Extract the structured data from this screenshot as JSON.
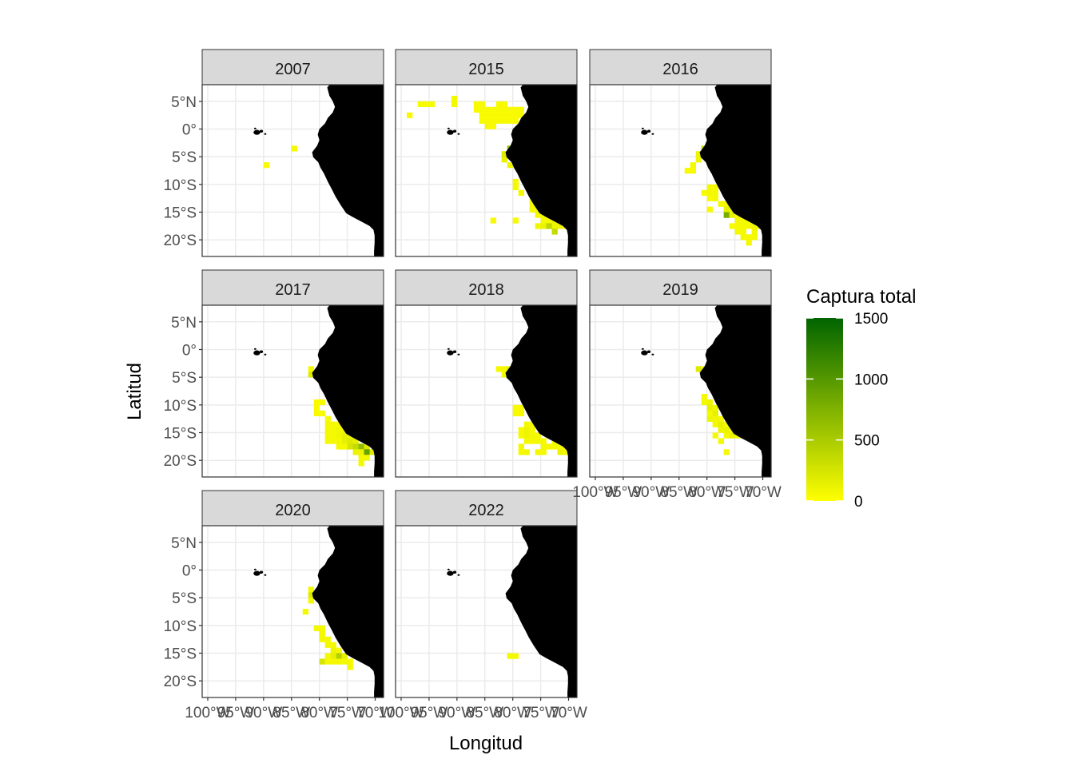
{
  "chart_data": {
    "type": "heatmap",
    "xlabel": "Longitud",
    "ylabel": "Latitud",
    "x_ticks": [
      {
        "value": -100,
        "label": "100°W"
      },
      {
        "value": -95,
        "label": "95°W"
      },
      {
        "value": -90,
        "label": "90°W"
      },
      {
        "value": -85,
        "label": "85°W"
      },
      {
        "value": -80,
        "label": "80°W"
      },
      {
        "value": -75,
        "label": "75°W"
      },
      {
        "value": -70,
        "label": "70°W"
      }
    ],
    "y_ticks": [
      {
        "value": 5,
        "label": "5°N"
      },
      {
        "value": 0,
        "label": "0°"
      },
      {
        "value": -5,
        "label": "5°S"
      },
      {
        "value": -10,
        "label": "10°S"
      },
      {
        "value": -15,
        "label": "15°S"
      },
      {
        "value": -20,
        "label": "20°S"
      }
    ],
    "xlim": [
      -101,
      -68.5
    ],
    "ylim": [
      -23,
      8
    ],
    "cell_size_deg": 1,
    "grid": true,
    "legend": {
      "title": "Captura total",
      "position": "right",
      "limits": [
        0,
        1500
      ],
      "breaks": [
        0,
        500,
        1000,
        1500
      ],
      "color_low": "#ffff00",
      "color_high": "#006400"
    },
    "land_color": "#000000",
    "panels": [
      {
        "year": "2007",
        "cells": [
          [
            -84.5,
            -3.5,
            60
          ],
          [
            -89.5,
            -6.5,
            40
          ]
        ]
      },
      {
        "year": "2015",
        "cells": [
          [
            -98.5,
            2.5,
            50
          ],
          [
            -96.5,
            4.5,
            40
          ],
          [
            -95.5,
            4.5,
            40
          ],
          [
            -94.5,
            4.5,
            40
          ],
          [
            -90.5,
            5.5,
            60
          ],
          [
            -90.5,
            4.5,
            60
          ],
          [
            -86.5,
            4.5,
            40
          ],
          [
            -85.5,
            4.5,
            40
          ],
          [
            -82.5,
            4.5,
            40
          ],
          [
            -81.5,
            4.5,
            40
          ],
          [
            -86.5,
            3.5,
            40
          ],
          [
            -85.5,
            3.5,
            40
          ],
          [
            -84.5,
            3.5,
            40
          ],
          [
            -83.5,
            3.5,
            40
          ],
          [
            -82.5,
            3.5,
            40
          ],
          [
            -81.5,
            3.5,
            40
          ],
          [
            -80.5,
            3.5,
            40
          ],
          [
            -79.5,
            3.5,
            40
          ],
          [
            -78.5,
            3.5,
            40
          ],
          [
            -85.5,
            2.5,
            40
          ],
          [
            -84.5,
            2.5,
            40
          ],
          [
            -83.5,
            2.5,
            40
          ],
          [
            -82.5,
            2.5,
            40
          ],
          [
            -81.5,
            2.5,
            40
          ],
          [
            -80.5,
            2.5,
            40
          ],
          [
            -79.5,
            2.5,
            40
          ],
          [
            -78.5,
            2.5,
            40
          ],
          [
            -85.5,
            1.5,
            40
          ],
          [
            -84.5,
            1.5,
            40
          ],
          [
            -83.5,
            1.5,
            40
          ],
          [
            -82.5,
            1.5,
            40
          ],
          [
            -81.5,
            1.5,
            40
          ],
          [
            -80.5,
            1.5,
            40
          ],
          [
            -79.5,
            1.5,
            40
          ],
          [
            -84.5,
            0.5,
            40
          ],
          [
            -83.5,
            0.5,
            40
          ],
          [
            -80.5,
            -3.5,
            650
          ],
          [
            -80.5,
            -4.5,
            300
          ],
          [
            -81.5,
            -4.5,
            200
          ],
          [
            -81.5,
            -5.5,
            150
          ],
          [
            -80.5,
            -6.5,
            100
          ],
          [
            -79.5,
            -9.5,
            60
          ],
          [
            -79.5,
            -10.5,
            60
          ],
          [
            -78.5,
            -11.5,
            60
          ],
          [
            -76.5,
            -12.5,
            60
          ],
          [
            -76.5,
            -13.5,
            60
          ],
          [
            -76.5,
            -14.5,
            60
          ],
          [
            -75.5,
            -14.5,
            60
          ],
          [
            -75.5,
            -15.5,
            60
          ],
          [
            -74.5,
            -15.5,
            60
          ],
          [
            -73.5,
            -15.5,
            60
          ],
          [
            -72.5,
            -15.5,
            60
          ],
          [
            -83.5,
            -16.5,
            40
          ],
          [
            -79.5,
            -16.5,
            40
          ],
          [
            -74.5,
            -16.5,
            60
          ],
          [
            -73.5,
            -16.5,
            60
          ],
          [
            -72.5,
            -16.5,
            100
          ],
          [
            -71.5,
            -16.5,
            60
          ],
          [
            -75.5,
            -17.5,
            80
          ],
          [
            -74.5,
            -17.5,
            120
          ],
          [
            -73.5,
            -17.5,
            400
          ],
          [
            -72.5,
            -17.5,
            100
          ],
          [
            -71.5,
            -17.5,
            100
          ],
          [
            -70.5,
            -17.5,
            60
          ],
          [
            -72.5,
            -18.5,
            350
          ]
        ]
      },
      {
        "year": "2016",
        "cells": [
          [
            -80.5,
            -3.5,
            350
          ],
          [
            -81.5,
            -4.5,
            100
          ],
          [
            -80.5,
            -4.5,
            500
          ],
          [
            -81.5,
            -5.5,
            100
          ],
          [
            -82.5,
            -6.5,
            60
          ],
          [
            -83.5,
            -7.5,
            40
          ],
          [
            -82.5,
            -7.5,
            40
          ],
          [
            -79.5,
            -10.5,
            60
          ],
          [
            -78.5,
            -10.5,
            60
          ],
          [
            -80.5,
            -11.5,
            40
          ],
          [
            -79.5,
            -11.5,
            60
          ],
          [
            -78.5,
            -11.5,
            60
          ],
          [
            -79.5,
            -12.5,
            40
          ],
          [
            -78.5,
            -12.5,
            60
          ],
          [
            -77.5,
            -13.5,
            60
          ],
          [
            -76.5,
            -13.5,
            60
          ],
          [
            -79.5,
            -14.5,
            40
          ],
          [
            -76.5,
            -14.5,
            150
          ],
          [
            -75.5,
            -14.5,
            100
          ],
          [
            -76.5,
            -15.5,
            800
          ],
          [
            -75.5,
            -15.5,
            150
          ],
          [
            -74.5,
            -15.5,
            60
          ],
          [
            -74.5,
            -16.5,
            60
          ],
          [
            -73.5,
            -16.5,
            60
          ],
          [
            -72.5,
            -16.5,
            60
          ],
          [
            -75.5,
            -17.5,
            40
          ],
          [
            -74.5,
            -17.5,
            60
          ],
          [
            -73.5,
            -17.5,
            60
          ],
          [
            -72.5,
            -17.5,
            60
          ],
          [
            -71.5,
            -17.5,
            80
          ],
          [
            -70.5,
            -17.5,
            60
          ],
          [
            -74.5,
            -18.5,
            60
          ],
          [
            -73.5,
            -18.5,
            60
          ],
          [
            -71.5,
            -18.5,
            60
          ],
          [
            -73.5,
            -19.5,
            60
          ],
          [
            -72.5,
            -19.5,
            60
          ],
          [
            -71.5,
            -19.5,
            60
          ],
          [
            -72.5,
            -20.5,
            60
          ]
        ]
      },
      {
        "year": "2017",
        "cells": [
          [
            -81.5,
            -3.5,
            60
          ],
          [
            -81.5,
            -4.5,
            200
          ],
          [
            -80.5,
            -9.5,
            40
          ],
          [
            -79.5,
            -9.5,
            40
          ],
          [
            -80.5,
            -10.5,
            40
          ],
          [
            -80.5,
            -11.5,
            40
          ],
          [
            -79.5,
            -11.5,
            40
          ],
          [
            -78.5,
            -12.5,
            40
          ],
          [
            -78.5,
            -13.5,
            60
          ],
          [
            -77.5,
            -13.5,
            60
          ],
          [
            -76.5,
            -13.5,
            60
          ],
          [
            -78.5,
            -14.5,
            60
          ],
          [
            -77.5,
            -14.5,
            60
          ],
          [
            -76.5,
            -14.5,
            80
          ],
          [
            -75.5,
            -14.5,
            60
          ],
          [
            -78.5,
            -15.5,
            60
          ],
          [
            -77.5,
            -15.5,
            60
          ],
          [
            -76.5,
            -15.5,
            80
          ],
          [
            -75.5,
            -15.5,
            150
          ],
          [
            -74.5,
            -15.5,
            120
          ],
          [
            -78.5,
            -16.5,
            60
          ],
          [
            -77.5,
            -16.5,
            60
          ],
          [
            -76.5,
            -16.5,
            60
          ],
          [
            -75.5,
            -16.5,
            150
          ],
          [
            -74.5,
            -16.5,
            200
          ],
          [
            -73.5,
            -16.5,
            150
          ],
          [
            -76.5,
            -17.5,
            60
          ],
          [
            -75.5,
            -17.5,
            60
          ],
          [
            -74.5,
            -17.5,
            250
          ],
          [
            -73.5,
            -17.5,
            350
          ],
          [
            -72.5,
            -17.5,
            650
          ],
          [
            -71.5,
            -17.5,
            200
          ],
          [
            -73.5,
            -18.5,
            120
          ],
          [
            -72.5,
            -18.5,
            100
          ],
          [
            -71.5,
            -18.5,
            900
          ],
          [
            -70.5,
            -18.5,
            200
          ],
          [
            -72.5,
            -19.5,
            60
          ],
          [
            -71.5,
            -19.5,
            60
          ],
          [
            -72.5,
            -20.5,
            60
          ]
        ]
      },
      {
        "year": "2018",
        "cells": [
          [
            -82.5,
            -3.5,
            60
          ],
          [
            -81.5,
            -3.5,
            60
          ],
          [
            -80.5,
            -3.5,
            150
          ],
          [
            -81.5,
            -4.5,
            60
          ],
          [
            -79.5,
            -10.5,
            40
          ],
          [
            -78.5,
            -10.5,
            40
          ],
          [
            -79.5,
            -11.5,
            40
          ],
          [
            -78.5,
            -11.5,
            40
          ],
          [
            -77.5,
            -13.5,
            60
          ],
          [
            -76.5,
            -13.5,
            60
          ],
          [
            -78.5,
            -14.5,
            60
          ],
          [
            -77.5,
            -14.5,
            100
          ],
          [
            -76.5,
            -14.5,
            60
          ],
          [
            -78.5,
            -15.5,
            60
          ],
          [
            -77.5,
            -15.5,
            100
          ],
          [
            -76.5,
            -15.5,
            60
          ],
          [
            -75.5,
            -15.5,
            60
          ],
          [
            -77.5,
            -16.5,
            60
          ],
          [
            -76.5,
            -16.5,
            60
          ],
          [
            -75.5,
            -16.5,
            60
          ],
          [
            -74.5,
            -16.5,
            60
          ],
          [
            -72.5,
            -16.5,
            60
          ],
          [
            -71.5,
            -16.5,
            60
          ],
          [
            -78.5,
            -17.5,
            60
          ],
          [
            -74.5,
            -17.5,
            60
          ],
          [
            -73.5,
            -17.5,
            60
          ],
          [
            -72.5,
            -17.5,
            60
          ],
          [
            -71.5,
            -17.5,
            60
          ],
          [
            -70.5,
            -17.5,
            60
          ],
          [
            -78.5,
            -18.5,
            60
          ],
          [
            -77.5,
            -18.5,
            60
          ],
          [
            -75.5,
            -18.5,
            60
          ],
          [
            -74.5,
            -18.5,
            60
          ],
          [
            -71.5,
            -18.5,
            100
          ],
          [
            -70.5,
            -18.5,
            60
          ]
        ]
      },
      {
        "year": "2019",
        "cells": [
          [
            -81.5,
            -3.5,
            200
          ],
          [
            -80.5,
            -3.5,
            60
          ],
          [
            -80.5,
            -8.5,
            60
          ],
          [
            -79.5,
            -9.5,
            100
          ],
          [
            -80.5,
            -9.5,
            60
          ],
          [
            -79.5,
            -10.5,
            150
          ],
          [
            -78.5,
            -10.5,
            80
          ],
          [
            -79.5,
            -11.5,
            60
          ],
          [
            -78.5,
            -11.5,
            150
          ],
          [
            -79.5,
            -12.5,
            100
          ],
          [
            -78.5,
            -12.5,
            80
          ],
          [
            -77.5,
            -12.5,
            60
          ],
          [
            -78.5,
            -13.5,
            60
          ],
          [
            -77.5,
            -13.5,
            150
          ],
          [
            -76.5,
            -13.5,
            60
          ],
          [
            -77.5,
            -14.5,
            100
          ],
          [
            -76.5,
            -14.5,
            120
          ],
          [
            -75.5,
            -14.5,
            60
          ],
          [
            -78.5,
            -15.5,
            60
          ],
          [
            -76.5,
            -15.5,
            60
          ],
          [
            -75.5,
            -15.5,
            120
          ],
          [
            -74.5,
            -15.5,
            60
          ],
          [
            -73.5,
            -15.5,
            60
          ],
          [
            -77.5,
            -16.5,
            60
          ],
          [
            -76.5,
            -18.5,
            60
          ]
        ]
      },
      {
        "year": "2020",
        "cells": [
          [
            -81.5,
            -3.5,
            60
          ],
          [
            -81.5,
            -4.5,
            200
          ],
          [
            -81.5,
            -5.5,
            60
          ],
          [
            -82.5,
            -7.5,
            60
          ],
          [
            -80.5,
            -10.5,
            60
          ],
          [
            -79.5,
            -10.5,
            60
          ],
          [
            -79.5,
            -11.5,
            60
          ],
          [
            -79.5,
            -12.5,
            60
          ],
          [
            -78.5,
            -12.5,
            60
          ],
          [
            -78.5,
            -13.5,
            60
          ],
          [
            -77.5,
            -13.5,
            60
          ],
          [
            -77.5,
            -14.5,
            100
          ],
          [
            -76.5,
            -14.5,
            60
          ],
          [
            -78.5,
            -15.5,
            60
          ],
          [
            -77.5,
            -15.5,
            150
          ],
          [
            -76.5,
            -15.5,
            450
          ],
          [
            -75.5,
            -15.5,
            150
          ],
          [
            -79.5,
            -16.5,
            250
          ],
          [
            -78.5,
            -16.5,
            60
          ],
          [
            -77.5,
            -16.5,
            60
          ],
          [
            -76.5,
            -16.5,
            60
          ],
          [
            -75.5,
            -16.5,
            60
          ],
          [
            -74.5,
            -16.5,
            60
          ],
          [
            -74.5,
            -17.5,
            60
          ]
        ]
      },
      {
        "year": "2022",
        "cells": [
          [
            -80.5,
            -15.5,
            60
          ],
          [
            -79.5,
            -15.5,
            60
          ]
        ]
      }
    ]
  }
}
